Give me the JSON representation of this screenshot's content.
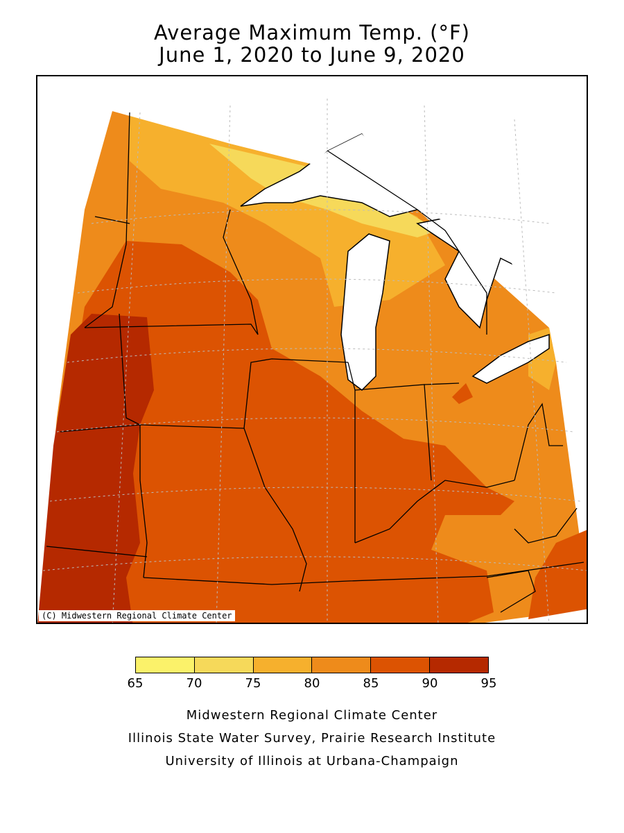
{
  "title": {
    "line1": "Average Maximum Temp. (°F)",
    "line2": "June 1, 2020 to June 9, 2020"
  },
  "map": {
    "copyright": "(C) Midwestern Regional Climate Center",
    "region": "Midwest United States",
    "lake_color": "#ffffff",
    "boundary_color": "#000000",
    "grid": "dotted lat/lon lines"
  },
  "legend": {
    "ticks": [
      "65",
      "70",
      "75",
      "80",
      "85",
      "90",
      "95"
    ],
    "bins": [
      {
        "range": "65-70",
        "color": "#fbf26a"
      },
      {
        "range": "70-75",
        "color": "#f6d95a"
      },
      {
        "range": "75-80",
        "color": "#f6b02d"
      },
      {
        "range": "80-85",
        "color": "#ee8b1b"
      },
      {
        "range": "85-90",
        "color": "#dc5302"
      },
      {
        "range": "90-95",
        "color": "#b52900"
      }
    ]
  },
  "credits": {
    "line1": "Midwestern Regional Climate Center",
    "line2": "Illinois State Water Survey, Prairie Research Institute",
    "line3": "University of Illinois at Urbana-Champaign"
  }
}
